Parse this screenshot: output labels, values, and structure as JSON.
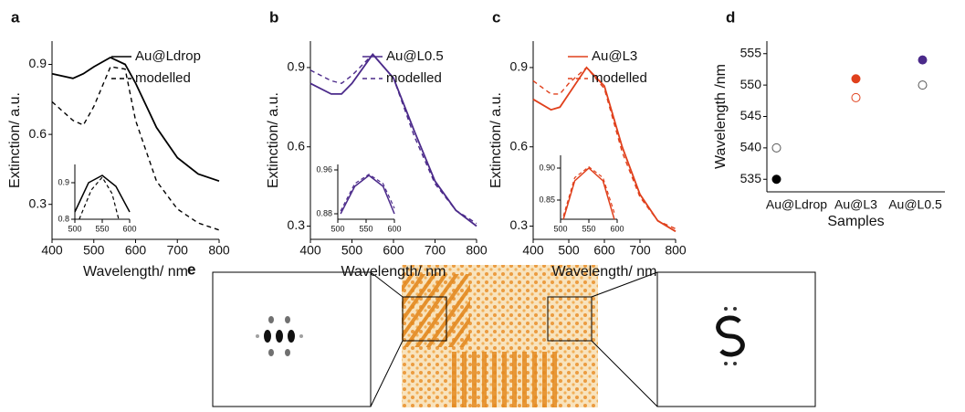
{
  "chart_data": [
    {
      "type": "line",
      "panel_label": "a",
      "xlabel": "Wavelength/ nm",
      "ylabel": "Extinction/ a.u.",
      "x": [
        400,
        450,
        475,
        500,
        540,
        575,
        600,
        650,
        700,
        750,
        800
      ],
      "series": [
        {
          "name": "Au@Ldrop",
          "color": "#000000",
          "dashed": false,
          "values": [
            0.86,
            0.84,
            0.86,
            0.89,
            0.93,
            0.9,
            0.82,
            0.63,
            0.5,
            0.43,
            0.4
          ]
        },
        {
          "name": "modelled",
          "color": "#000000",
          "dashed": true,
          "values": [
            0.74,
            0.66,
            0.64,
            0.72,
            0.89,
            0.88,
            0.66,
            0.4,
            0.28,
            0.22,
            0.19
          ]
        }
      ],
      "xlim": [
        400,
        800
      ],
      "ylim": [
        0.15,
        1.0
      ],
      "xticks": [
        400,
        500,
        600,
        700,
        800
      ],
      "yticks": [
        0.3,
        0.6,
        0.9
      ],
      "inset": {
        "xlim": [
          500,
          600
        ],
        "ylim": [
          0.8,
          0.95
        ],
        "xticks": [
          500,
          550,
          600
        ],
        "yticks": [
          0.8,
          0.9
        ],
        "series": [
          {
            "x": [
              500,
              525,
              550,
              575,
              600
            ],
            "values": [
              0.82,
              0.9,
              0.92,
              0.89,
              0.82
            ]
          },
          {
            "x": [
              508,
              530,
              550,
              568,
              580
            ],
            "values": [
              0.8,
              0.88,
              0.915,
              0.87,
              0.8
            ]
          }
        ]
      }
    },
    {
      "type": "line",
      "panel_label": "b",
      "xlabel": "Wavelength/ nm",
      "ylabel": "Extinction/ a.u.",
      "x": [
        400,
        450,
        475,
        500,
        550,
        600,
        650,
        700,
        750,
        800
      ],
      "series": [
        {
          "name": "Au@L0.5",
          "color": "#4b2a8a",
          "dashed": false,
          "values": [
            0.84,
            0.8,
            0.8,
            0.84,
            0.95,
            0.86,
            0.66,
            0.47,
            0.36,
            0.3
          ]
        },
        {
          "name": "modelled",
          "color": "#4b2a8a",
          "dashed": true,
          "values": [
            0.89,
            0.85,
            0.84,
            0.87,
            0.95,
            0.86,
            0.64,
            0.46,
            0.36,
            0.31
          ]
        }
      ],
      "xlim": [
        400,
        800
      ],
      "ylim": [
        0.25,
        1.0
      ],
      "xticks": [
        400,
        500,
        600,
        700,
        800
      ],
      "yticks": [
        0.3,
        0.6,
        0.9
      ],
      "inset": {
        "xlim": [
          500,
          600
        ],
        "ylim": [
          0.87,
          0.97
        ],
        "xticks": [
          500,
          550,
          600
        ],
        "yticks": [
          0.88,
          0.96
        ],
        "series": [
          {
            "x": [
              505,
              530,
              555,
              580,
              600
            ],
            "values": [
              0.88,
              0.93,
              0.95,
              0.93,
              0.88
            ]
          },
          {
            "x": [
              505,
              530,
              555,
              580,
              600
            ],
            "values": [
              0.885,
              0.935,
              0.952,
              0.935,
              0.89
            ]
          }
        ]
      }
    },
    {
      "type": "line",
      "panel_label": "c",
      "xlabel": "Wavelength/ nm",
      "ylabel": "Extinction/ a.u.",
      "x": [
        400,
        450,
        475,
        500,
        550,
        600,
        650,
        700,
        750,
        800
      ],
      "series": [
        {
          "name": "Au@L3",
          "color": "#e0401c",
          "dashed": false,
          "values": [
            0.78,
            0.74,
            0.75,
            0.8,
            0.9,
            0.83,
            0.6,
            0.42,
            0.32,
            0.28
          ]
        },
        {
          "name": "modelled",
          "color": "#e0401c",
          "dashed": true,
          "values": [
            0.85,
            0.8,
            0.8,
            0.84,
            0.9,
            0.82,
            0.58,
            0.41,
            0.32,
            0.29
          ]
        }
      ],
      "xlim": [
        400,
        800
      ],
      "ylim": [
        0.25,
        1.0
      ],
      "xticks": [
        400,
        500,
        600,
        700,
        800
      ],
      "yticks": [
        0.3,
        0.6,
        0.9
      ],
      "inset": {
        "xlim": [
          500,
          600
        ],
        "ylim": [
          0.82,
          0.92
        ],
        "xticks": [
          500,
          550,
          600
        ],
        "yticks": [
          0.85,
          {
            "value": 0.9,
            "label": "0.90"
          }
        ],
        "series": [
          {
            "x": [
              505,
              525,
              550,
              575,
              595
            ],
            "values": [
              0.82,
              0.88,
              0.9,
              0.88,
              0.82
            ]
          },
          {
            "x": [
              505,
              525,
              550,
              575,
              595
            ],
            "values": [
              0.825,
              0.885,
              0.902,
              0.885,
              0.83
            ]
          }
        ]
      }
    },
    {
      "type": "scatter",
      "panel_label": "d",
      "xlabel": "Samples",
      "ylabel": "Wavelength /nm",
      "categories": [
        "Au@Ldrop",
        "Au@L3",
        "Au@L0.5"
      ],
      "series": [
        {
          "filled": true,
          "colors": [
            "#000000",
            "#e0401c",
            "#4b2a8a"
          ],
          "values": [
            535,
            551,
            554
          ]
        },
        {
          "filled": false,
          "colors": [
            "#555555",
            "#e0401c",
            "#555555"
          ],
          "values": [
            540,
            548,
            550
          ]
        }
      ],
      "ylim": [
        533,
        557
      ],
      "yticks": [
        535,
        540,
        545,
        550,
        555
      ]
    }
  ],
  "image_panel": {
    "label": "e"
  }
}
